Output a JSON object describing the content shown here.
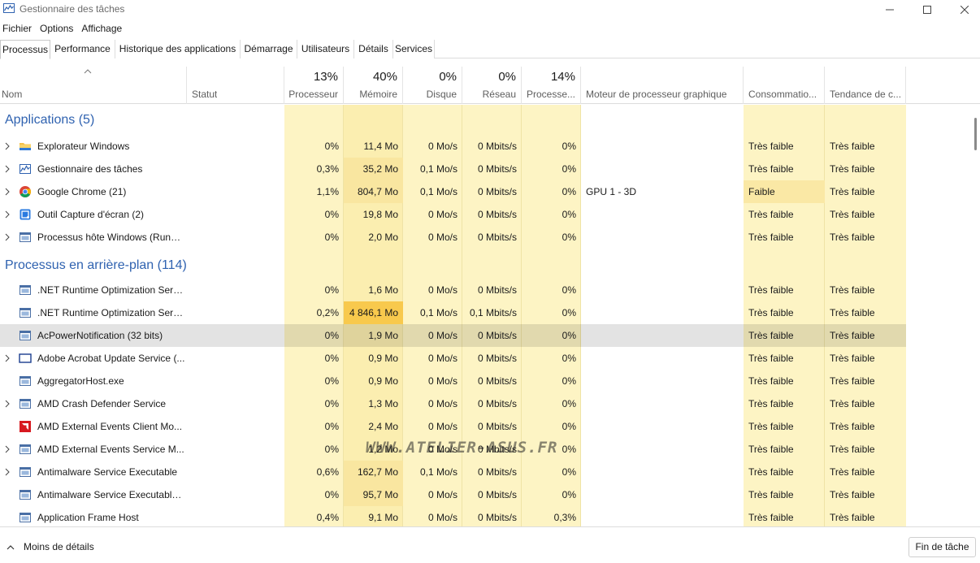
{
  "window": {
    "title": "Gestionnaire des tâches"
  },
  "menu": [
    "Fichier",
    "Options",
    "Affichage"
  ],
  "tabs": [
    "Processus",
    "Performance",
    "Historique des applications",
    "Démarrage",
    "Utilisateurs",
    "Détails",
    "Services"
  ],
  "columns": {
    "name": "Nom",
    "status": "Statut",
    "cpu": {
      "pct": "13%",
      "label": "Processeur"
    },
    "memory": {
      "pct": "40%",
      "label": "Mémoire"
    },
    "disk": {
      "pct": "0%",
      "label": "Disque"
    },
    "network": {
      "pct": "0%",
      "label": "Réseau"
    },
    "gpu": {
      "pct": "14%",
      "label": "Processe..."
    },
    "gpu_engine": "Moteur de processeur graphique",
    "power": "Consommatio...",
    "power_trend": "Tendance de c..."
  },
  "groups": {
    "apps": "Applications (5)",
    "background": "Processus en arrière-plan (114)"
  },
  "apps": [
    {
      "name": "Explorateur Windows",
      "icon": "folder-icon",
      "cpu": "0%",
      "mem": "11,4 Mo",
      "disk": "0 Mo/s",
      "net": "0 Mbits/s",
      "gpu": "0%",
      "engine": "",
      "power": "Très faible",
      "trend": "Très faible"
    },
    {
      "name": "Gestionnaire des tâches",
      "icon": "task-manager-icon",
      "cpu": "0,3%",
      "mem": "35,2 Mo",
      "disk": "0,1 Mo/s",
      "net": "0 Mbits/s",
      "gpu": "0%",
      "engine": "",
      "power": "Très faible",
      "trend": "Très faible"
    },
    {
      "name": "Google Chrome (21)",
      "icon": "chrome-icon",
      "cpu": "1,1%",
      "mem": "804,7 Mo",
      "disk": "0,1 Mo/s",
      "net": "0 Mbits/s",
      "gpu": "0%",
      "engine": "GPU 1 - 3D",
      "power": "Faible",
      "trend": "Très faible"
    },
    {
      "name": "Outil Capture d'écran (2)",
      "icon": "snipping-tool-icon",
      "cpu": "0%",
      "mem": "19,8 Mo",
      "disk": "0 Mo/s",
      "net": "0 Mbits/s",
      "gpu": "0%",
      "engine": "",
      "power": "Très faible",
      "trend": "Très faible"
    },
    {
      "name": "Processus hôte Windows (Rundl...",
      "icon": "app-window-icon",
      "cpu": "0%",
      "mem": "2,0 Mo",
      "disk": "0 Mo/s",
      "net": "0 Mbits/s",
      "gpu": "0%",
      "engine": "",
      "power": "Très faible",
      "trend": "Très faible"
    }
  ],
  "background": [
    {
      "name": ".NET Runtime Optimization Serv...",
      "expand": false,
      "icon": "app-window-icon",
      "cpu": "0%",
      "mem": "1,6 Mo",
      "disk": "0 Mo/s",
      "net": "0 Mbits/s",
      "gpu": "0%",
      "power": "Très faible",
      "trend": "Très faible"
    },
    {
      "name": ".NET Runtime Optimization Serv...",
      "expand": false,
      "icon": "app-window-icon",
      "cpu": "0,2%",
      "mem": "4 846,1 Mo",
      "disk": "0,1 Mo/s",
      "net": "0,1 Mbits/s",
      "gpu": "0%",
      "power": "Très faible",
      "trend": "Très faible"
    },
    {
      "name": "AcPowerNotification (32 bits)",
      "expand": false,
      "icon": "app-window-icon",
      "cpu": "0%",
      "mem": "1,9 Mo",
      "disk": "0 Mo/s",
      "net": "0 Mbits/s",
      "gpu": "0%",
      "power": "Très faible",
      "trend": "Très faible"
    },
    {
      "name": "Adobe Acrobat Update Service (...",
      "expand": true,
      "icon": "window-outline-icon",
      "cpu": "0%",
      "mem": "0,9 Mo",
      "disk": "0 Mo/s",
      "net": "0 Mbits/s",
      "gpu": "0%",
      "power": "Très faible",
      "trend": "Très faible"
    },
    {
      "name": "AggregatorHost.exe",
      "expand": false,
      "icon": "app-window-icon",
      "cpu": "0%",
      "mem": "0,9 Mo",
      "disk": "0 Mo/s",
      "net": "0 Mbits/s",
      "gpu": "0%",
      "power": "Très faible",
      "trend": "Très faible"
    },
    {
      "name": "AMD Crash Defender Service",
      "expand": true,
      "icon": "app-window-icon",
      "cpu": "0%",
      "mem": "1,3 Mo",
      "disk": "0 Mo/s",
      "net": "0 Mbits/s",
      "gpu": "0%",
      "power": "Très faible",
      "trend": "Très faible"
    },
    {
      "name": "AMD External Events Client Mo...",
      "expand": false,
      "icon": "amd-icon",
      "cpu": "0%",
      "mem": "2,4 Mo",
      "disk": "0 Mo/s",
      "net": "0 Mbits/s",
      "gpu": "0%",
      "power": "Très faible",
      "trend": "Très faible"
    },
    {
      "name": "AMD External Events Service M...",
      "expand": true,
      "icon": "app-window-icon",
      "cpu": "0%",
      "mem": "1,2 Mo",
      "disk": "0 Mo/s",
      "net": "0 Mbits/s",
      "gpu": "0%",
      "power": "Très faible",
      "trend": "Très faible"
    },
    {
      "name": "Antimalware Service Executable",
      "expand": true,
      "icon": "app-window-icon",
      "cpu": "0,6%",
      "mem": "162,7 Mo",
      "disk": "0,1 Mo/s",
      "net": "0 Mbits/s",
      "gpu": "0%",
      "power": "Très faible",
      "trend": "Très faible"
    },
    {
      "name": "Antimalware Service Executable...",
      "expand": false,
      "icon": "app-window-icon",
      "cpu": "0%",
      "mem": "95,7 Mo",
      "disk": "0 Mo/s",
      "net": "0 Mbits/s",
      "gpu": "0%",
      "power": "Très faible",
      "trend": "Très faible"
    },
    {
      "name": "Application Frame Host",
      "expand": false,
      "icon": "app-window-icon",
      "cpu": "0,4%",
      "mem": "9,1 Mo",
      "disk": "0 Mo/s",
      "net": "0 Mbits/s",
      "gpu": "0,3%",
      "power": "Très faible",
      "trend": "Très faible"
    }
  ],
  "footer": {
    "less_details": "Moins de détails",
    "end_task": "Fin de tâche"
  },
  "watermark": "WWW.ATELIER-ASUS.FR",
  "colors": {
    "heat_light": "#fdf4c4",
    "heat_mid": "#fbeeb0",
    "heat_strong": "#f8c94d",
    "group_header": "#2f62b0",
    "selected_row": "#e2e2e2"
  }
}
